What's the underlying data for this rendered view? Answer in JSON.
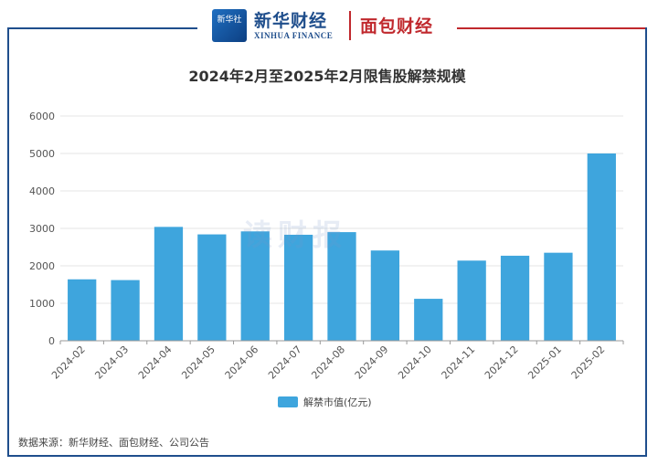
{
  "header": {
    "logo_text": "新华社",
    "brand_primary": "新华财经",
    "brand_primary_en": "XINHUA FINANCE",
    "brand_secondary": "面包财经"
  },
  "watermark": "读财报",
  "source": "数据来源：新华财经、面包财经、公司公告",
  "colors": {
    "bar": "#3ea5dd",
    "frame_blue": "#1f4e8c",
    "frame_red": "#c0282d"
  },
  "chart_data": {
    "type": "bar",
    "title": "2024年2月至2025年2月限售股解禁规模",
    "xlabel": "",
    "ylabel": "",
    "categories": [
      "2024-02",
      "2024-03",
      "2024-04",
      "2024-05",
      "2024-06",
      "2024-07",
      "2024-08",
      "2024-09",
      "2024-10",
      "2024-11",
      "2024-12",
      "2025-01",
      "2025-02"
    ],
    "series": [
      {
        "name": "解禁市值(亿元)",
        "values": [
          1640,
          1620,
          3040,
          2840,
          2920,
          2830,
          2900,
          2410,
          1120,
          2140,
          2270,
          2350,
          5000
        ]
      }
    ],
    "ylim": [
      0,
      6000
    ],
    "yticks": [
      0,
      1000,
      2000,
      3000,
      4000,
      5000,
      6000
    ],
    "grid": true,
    "legend_position": "bottom-center"
  }
}
